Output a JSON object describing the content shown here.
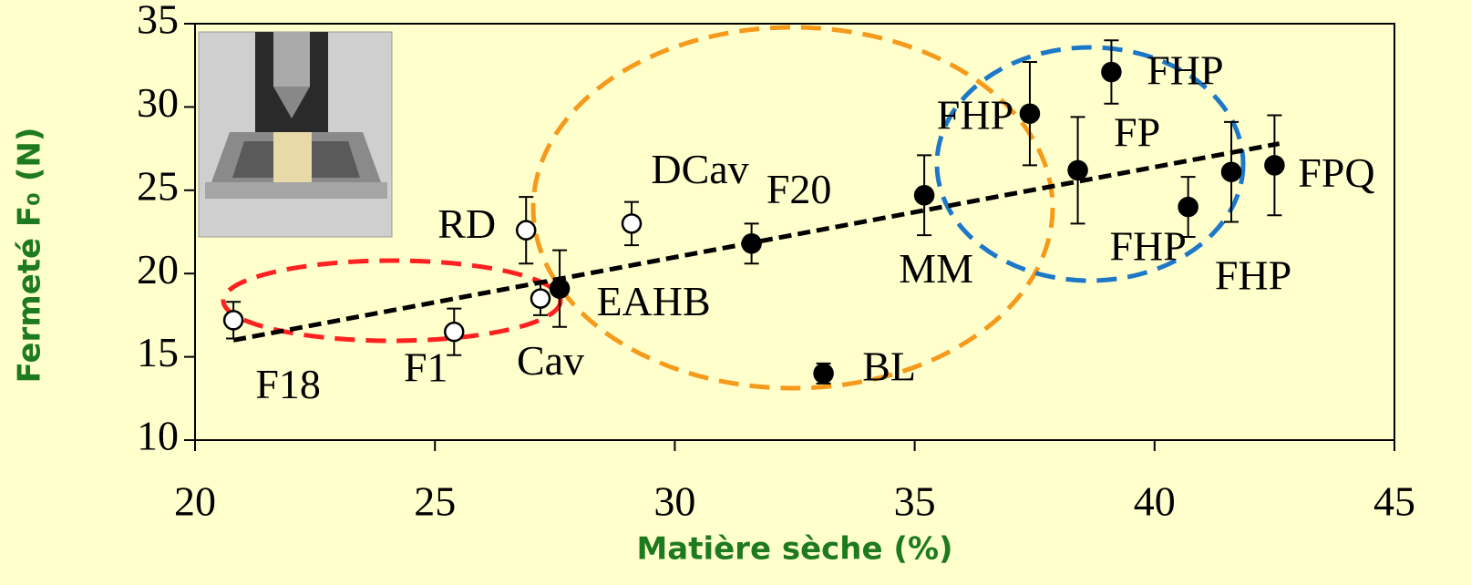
{
  "chart_data": {
    "type": "scatter",
    "xlabel": "Matière sèche (%)",
    "ylabel": "Fermeté F₀ (N)",
    "xlim": [
      20,
      45
    ],
    "xticks": [
      20,
      25,
      30,
      35,
      40,
      45
    ],
    "ylim": [
      10,
      35
    ],
    "yticks": [
      10,
      15,
      20,
      25,
      30,
      35
    ],
    "series": [
      {
        "color": "#ffffff",
        "x": [
          20.8,
          25.4,
          27.2,
          26.9,
          29.1
        ],
        "y": [
          17.2,
          16.5,
          18.5,
          22.6,
          23.0
        ],
        "errors": [
          1.1,
          1.4,
          1.0,
          2.0,
          1.3
        ],
        "labels": [
          "F18",
          "F1",
          "Cav",
          "RD",
          "DCav"
        ]
      },
      {
        "color": "#000000",
        "x": [
          27.6,
          31.6,
          33.1,
          35.2,
          37.4,
          38.4,
          39.1,
          40.7,
          41.6,
          42.5
        ],
        "y": [
          19.1,
          21.8,
          14.0,
          24.7,
          29.6,
          26.2,
          32.1,
          24.0,
          26.1,
          26.5
        ],
        "errors": [
          2.3,
          1.2,
          0.6,
          2.4,
          3.1,
          3.2,
          1.9,
          1.8,
          3.0,
          3.0
        ],
        "labels": [
          "EAHB",
          "F20",
          "BL",
          "MM",
          "FHP",
          "FP",
          "FHP",
          "FHP",
          "FHP",
          "FPQ"
        ]
      }
    ],
    "trendline": {
      "x": [
        20.8,
        42.6
      ],
      "y": [
        16.0,
        27.8
      ],
      "color": "#000000"
    }
  }
}
